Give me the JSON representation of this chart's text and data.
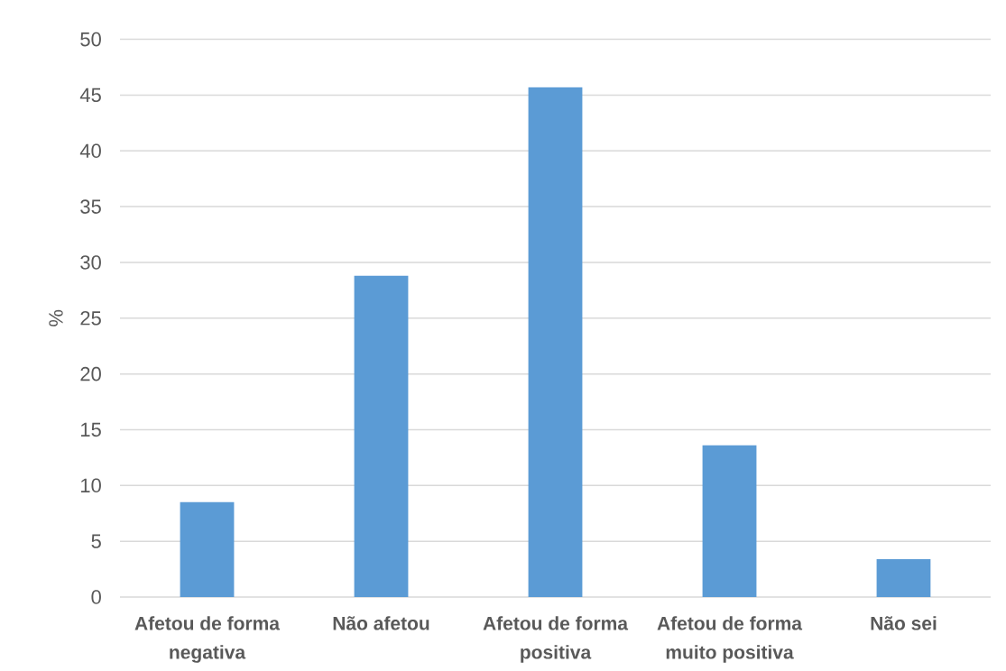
{
  "chart_data": {
    "type": "bar",
    "ylabel": "%",
    "categories": [
      "Afetou de forma negativa",
      "Não afetou",
      "Afetou de forma positiva",
      "Afetou de forma muito positiva",
      "Não sei"
    ],
    "values": [
      8.5,
      28.8,
      45.7,
      13.6,
      3.4
    ],
    "color": "#5b9bd5",
    "ylim": [
      0,
      50
    ],
    "yticks": [
      0,
      5,
      10,
      15,
      20,
      25,
      30,
      35,
      40,
      45,
      50
    ],
    "grid": "y"
  }
}
